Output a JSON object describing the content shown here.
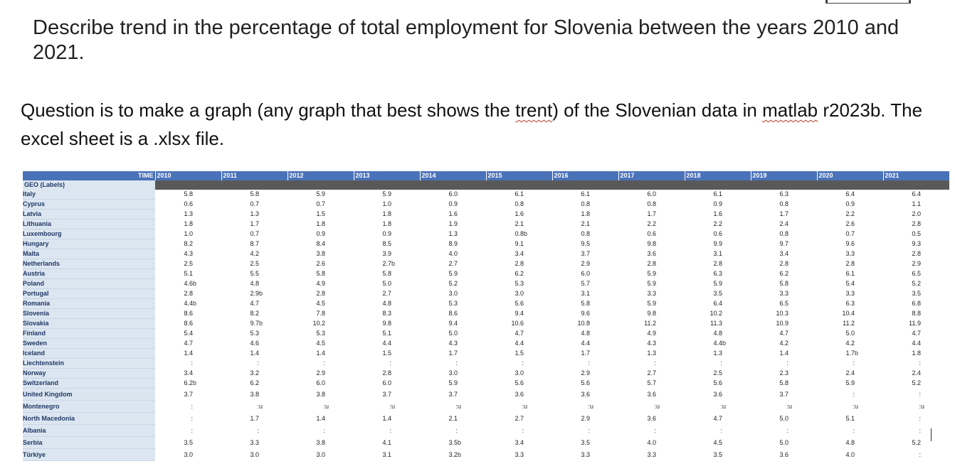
{
  "question_title": "Describe trend in the percentage of total employment for Slovenia between the years 2010 and 2021.",
  "question_body": {
    "part1": "Question is to make a graph (any graph that best shows the ",
    "word_trend": "trent",
    "part2": ") of the Slovenian data in ",
    "word_matlab": "matlab",
    "part3": " r2023b. The excel sheet is a .xlsx file."
  },
  "table": {
    "time_label": "TIME",
    "geo_label": "GEO (Labels)",
    "years": [
      "2010",
      "2011",
      "2012",
      "2013",
      "2014",
      "2015",
      "2016",
      "2017",
      "2018",
      "2019",
      "2020",
      "2021"
    ],
    "rows": [
      {
        "country": "Italy",
        "values": [
          "5.8",
          "5.8",
          "5.9",
          "5.9",
          "6.0",
          "6.1",
          "6.1",
          "6.0",
          "6.1",
          "6.3",
          "6.4",
          "6.4"
        ],
        "flags": [
          "",
          "",
          "",
          "",
          "",
          "",
          "",
          "",
          "",
          "",
          "",
          ""
        ]
      },
      {
        "country": "Cyprus",
        "values": [
          "0.6",
          "0.7",
          "0.7",
          "1.0",
          "0.9",
          "0.8",
          "0.8",
          "0.8",
          "0.9",
          "0.8",
          "0.9",
          "1.1"
        ],
        "flags": [
          "",
          "",
          "",
          "",
          "",
          "",
          "",
          "",
          "",
          "",
          "",
          ""
        ]
      },
      {
        "country": "Latvia",
        "values": [
          "1.3",
          "1.3",
          "1.5",
          "1.8",
          "1.6",
          "1.6",
          "1.8",
          "1.7",
          "1.6",
          "1.7",
          "2.2",
          "2.0"
        ],
        "flags": [
          "",
          "",
          "",
          "",
          "",
          "",
          "",
          "",
          "",
          "",
          "",
          ""
        ]
      },
      {
        "country": "Lithuania",
        "values": [
          "1.8",
          "1.7",
          "1.8",
          "1.8",
          "1.9",
          "2.1",
          "2.1",
          "2.2",
          "2.2",
          "2.4",
          "2.6",
          "2.8"
        ],
        "flags": [
          "",
          "",
          "",
          "",
          "",
          "",
          "",
          "",
          "",
          "",
          "",
          ""
        ]
      },
      {
        "country": "Luxembourg",
        "values": [
          "1.0",
          "0.7",
          "0.9",
          "0.9",
          "1.3",
          "0.8",
          "0.8",
          "0.6",
          "0.6",
          "0.8",
          "0.7",
          "0.5"
        ],
        "flags": [
          "",
          "",
          "",
          "",
          "",
          "b",
          "",
          "",
          "",
          "",
          "",
          ""
        ]
      },
      {
        "country": "Hungary",
        "values": [
          "8.2",
          "8.7",
          "8.4",
          "8.5",
          "8.9",
          "9.1",
          "9.5",
          "9.8",
          "9.9",
          "9.7",
          "9.6",
          "9.3"
        ],
        "flags": [
          "",
          "",
          "",
          "",
          "",
          "",
          "",
          "",
          "",
          "",
          "",
          ""
        ]
      },
      {
        "country": "Malta",
        "values": [
          "4.3",
          "4.2",
          "3.8",
          "3.9",
          "4.0",
          "3.4",
          "3.7",
          "3.6",
          "3.1",
          "3.4",
          "3.3",
          "2.8"
        ],
        "flags": [
          "",
          "",
          "",
          "",
          "",
          "",
          "",
          "",
          "",
          "",
          "",
          ""
        ]
      },
      {
        "country": "Netherlands",
        "values": [
          "2.5",
          "2.5",
          "2.6",
          "2.7",
          "2.7",
          "2.8",
          "2.9",
          "2.8",
          "2.8",
          "2.8",
          "2.8",
          "2.9"
        ],
        "flags": [
          "",
          "",
          "",
          "b",
          "",
          "",
          "",
          "",
          "",
          "",
          "",
          ""
        ]
      },
      {
        "country": "Austria",
        "values": [
          "5.1",
          "5.5",
          "5.8",
          "5.8",
          "5.9",
          "6.2",
          "6.0",
          "5.9",
          "6.3",
          "6.2",
          "6.1",
          "6.5"
        ],
        "flags": [
          "",
          "",
          "",
          "",
          "",
          "",
          "",
          "",
          "",
          "",
          "",
          ""
        ]
      },
      {
        "country": "Poland",
        "values": [
          "4.6",
          "4.8",
          "4.9",
          "5.0",
          "5.2",
          "5.3",
          "5.7",
          "5.9",
          "5.9",
          "5.8",
          "5.4",
          "5.2"
        ],
        "flags": [
          "b",
          "",
          "",
          "",
          "",
          "",
          "",
          "",
          "",
          "",
          "",
          ""
        ]
      },
      {
        "country": "Portugal",
        "values": [
          "2.8",
          "2.9",
          "2.8",
          "2.7",
          "3.0",
          "3.0",
          "3.1",
          "3.3",
          "3.5",
          "3.3",
          "3.3",
          "3.5"
        ],
        "flags": [
          "",
          "b",
          "",
          "",
          "",
          "",
          "",
          "",
          "",
          "",
          "",
          ""
        ]
      },
      {
        "country": "Romania",
        "values": [
          "4.4",
          "4.7",
          "4.5",
          "4.8",
          "5.3",
          "5.6",
          "5.8",
          "5.9",
          "6.4",
          "6.5",
          "6.3",
          "6.8"
        ],
        "flags": [
          "b",
          "",
          "",
          "",
          "",
          "",
          "",
          "",
          "",
          "",
          "",
          ""
        ]
      },
      {
        "country": "Slovenia",
        "values": [
          "8.6",
          "8.2",
          "7.8",
          "8.3",
          "8.6",
          "9.4",
          "9.6",
          "9.8",
          "10.2",
          "10.3",
          "10.4",
          "8.8"
        ],
        "flags": [
          "",
          "",
          "",
          "",
          "",
          "",
          "",
          "",
          "",
          "",
          "",
          ""
        ]
      },
      {
        "country": "Slovakia",
        "values": [
          "8.6",
          "9.7",
          "10.2",
          "9.8",
          "9.4",
          "10.6",
          "10.8",
          "11.2",
          "11.3",
          "10.9",
          "11.2",
          "11.9"
        ],
        "flags": [
          "",
          "b",
          "",
          "",
          "",
          "",
          "",
          "",
          "",
          "",
          "",
          ""
        ]
      },
      {
        "country": "Finland",
        "values": [
          "5.4",
          "5.3",
          "5.3",
          "5.1",
          "5.0",
          "4.7",
          "4.8",
          "4.9",
          "4.8",
          "4.7",
          "5.0",
          "4.7"
        ],
        "flags": [
          "",
          "",
          "",
          "",
          "",
          "",
          "",
          "",
          "",
          "",
          "",
          ""
        ]
      },
      {
        "country": "Sweden",
        "values": [
          "4.7",
          "4.6",
          "4.5",
          "4.4",
          "4.3",
          "4.4",
          "4.4",
          "4.3",
          "4.4",
          "4.2",
          "4.2",
          "4.4"
        ],
        "flags": [
          "",
          "",
          "",
          "",
          "",
          "",
          "",
          "",
          "b",
          "",
          "",
          ""
        ]
      },
      {
        "country": "Iceland",
        "values": [
          "1.4",
          "1.4",
          "1.4",
          "1.5",
          "1.7",
          "1.5",
          "1.7",
          "1.3",
          "1.3",
          "1.4",
          "1.7",
          "1.8"
        ],
        "flags": [
          "",
          "",
          "",
          "",
          "",
          "",
          "",
          "",
          "",
          "",
          "b",
          ""
        ]
      },
      {
        "country": "Liechtenstein",
        "values": [
          ":",
          ":",
          ":",
          ":",
          ":",
          ":",
          ":",
          ":",
          ":",
          ":",
          ":",
          ":"
        ],
        "flags": [
          "",
          "",
          "",
          "",
          "",
          "",
          "",
          "",
          "",
          "",
          "",
          ""
        ]
      },
      {
        "country": "Norway",
        "values": [
          "3.4",
          "3.2",
          "2.9",
          "2.8",
          "3.0",
          "3.0",
          "2.9",
          "2.7",
          "2.5",
          "2.3",
          "2.4",
          "2.4"
        ],
        "flags": [
          "",
          "",
          "",
          "",
          "",
          "",
          "",
          "",
          "",
          "",
          "",
          ""
        ]
      },
      {
        "country": "Switzerland",
        "values": [
          "6.2",
          "6.2",
          "6.0",
          "6.0",
          "5.9",
          "5.6",
          "5.6",
          "5.7",
          "5.6",
          "5.8",
          "5.9",
          "5.2"
        ],
        "flags": [
          "b",
          "",
          "",
          "",
          "",
          "",
          "",
          "",
          "",
          "",
          "",
          ""
        ]
      },
      {
        "country": "United Kingdom",
        "values": [
          "3.7",
          "3.8",
          "3.8",
          "3.7",
          "3.7",
          "3.6",
          "3.6",
          "3.6",
          "3.6",
          "3.7",
          ":",
          ":"
        ],
        "flags": [
          "",
          "",
          "",
          "",
          "",
          "",
          "",
          "",
          "",
          "",
          "",
          ""
        ]
      },
      {
        "country": "Montenegro",
        "values": [
          ":",
          ":",
          ":",
          ":",
          ":",
          ":",
          ":",
          ":",
          ":",
          ":",
          ":",
          ":"
        ],
        "flags": [
          "",
          "u",
          "u",
          "u",
          "u",
          "u",
          "u",
          "u",
          "u",
          "u",
          "u",
          "u"
        ]
      },
      {
        "country": "North Macedonia",
        "values": [
          ":",
          "1.7",
          "1.4",
          "1.4",
          "2.1",
          "2.7",
          "2.9",
          "3.6",
          "4.7",
          "5.0",
          "5.1",
          ":"
        ],
        "flags": [
          "",
          "",
          "",
          "",
          "",
          "",
          "",
          "",
          "",
          "",
          "",
          ""
        ]
      },
      {
        "country": "Albania",
        "values": [
          ":",
          ":",
          ":",
          ":",
          ":",
          ":",
          ":",
          ":",
          ":",
          ":",
          ":",
          ":"
        ],
        "flags": [
          "",
          "",
          "",
          "",
          "",
          "",
          "",
          "",
          "",
          "",
          "",
          ""
        ]
      },
      {
        "country": "Serbia",
        "values": [
          "3.5",
          "3.3",
          "3.8",
          "4.1",
          "3.5",
          "3.4",
          "3.5",
          "4.0",
          "4.5",
          "5.0",
          "4.8",
          "5.2"
        ],
        "flags": [
          "",
          "",
          "",
          "",
          "b",
          "",
          "",
          "",
          "",
          "",
          "",
          ""
        ]
      },
      {
        "country": "Türkiye",
        "values": [
          "3.0",
          "3.0",
          "3.0",
          "3.1",
          "3.2",
          "3.3",
          "3.3",
          "3.3",
          "3.5",
          "3.6",
          "4.0",
          ":"
        ],
        "flags": [
          "",
          "",
          "",
          "",
          "b",
          "",
          "",
          "",
          "",
          "",
          "",
          ""
        ]
      }
    ]
  }
}
